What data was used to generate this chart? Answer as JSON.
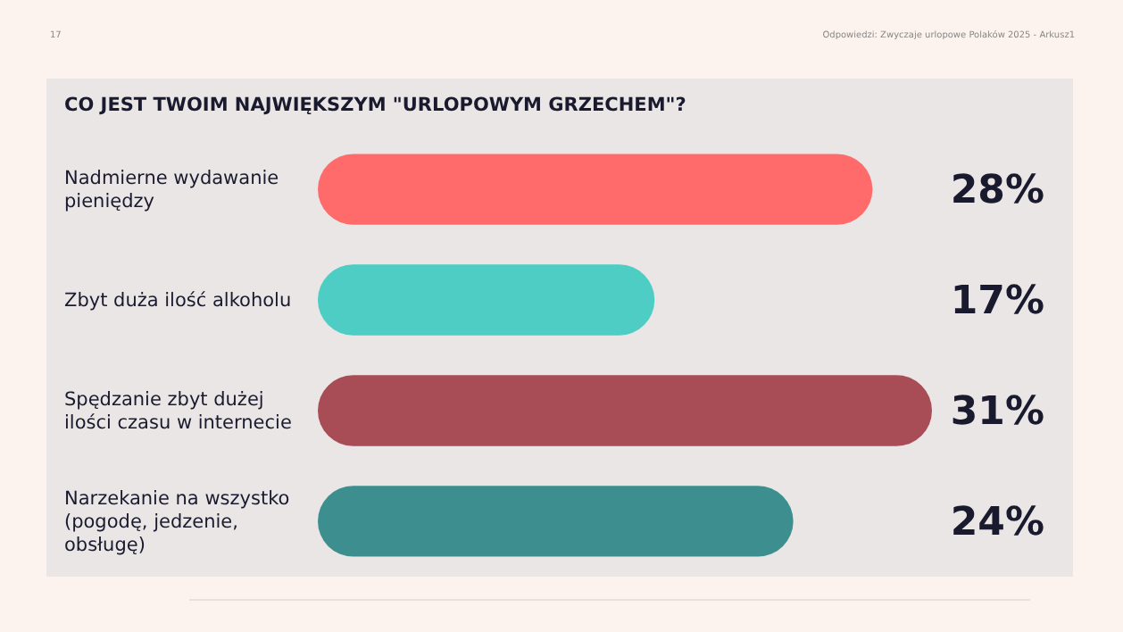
{
  "chart_data": {
    "type": "bar",
    "orientation": "horizontal",
    "title": "CO JEST TWOIM NAJWIĘKSZYM \"URLOPOWYM GRZECHEM\"?",
    "categories": [
      "Nadmierne wydawanie pieniędzy",
      "Zbyt duża ilość alkoholu",
      "Spędzanie zbyt dużej ilości czasu w internecie",
      "Narzekanie na wszystko (pogodę, jedzenie, obsługę)"
    ],
    "values": [
      28,
      17,
      31,
      24
    ],
    "value_labels": [
      "28%",
      "17%",
      "31%",
      "24%"
    ],
    "colors": [
      "#ff6b6b",
      "#4ecdc4",
      "#a84c55",
      "#3d8f8f"
    ],
    "xlim": [
      0,
      31
    ],
    "annotations": [
      "17",
      "Odpowiedzi: Zwyczaje urlopowe Polaków 2025 - Arkusz1"
    ]
  }
}
